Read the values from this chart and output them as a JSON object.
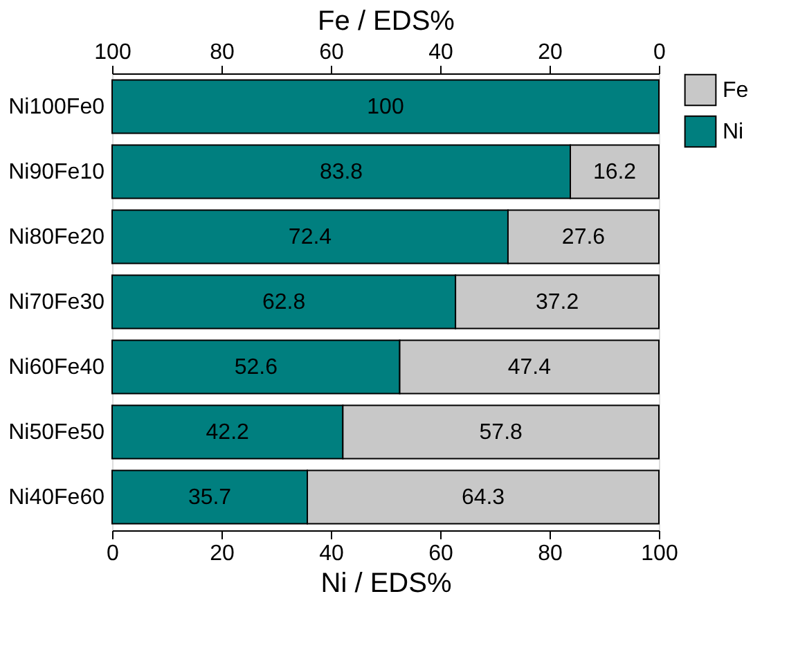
{
  "chart_data": {
    "type": "bar",
    "orientation": "horizontal",
    "stacked": true,
    "categories": [
      "Ni100Fe0",
      "Ni90Fe10",
      "Ni80Fe20",
      "Ni70Fe30",
      "Ni60Fe40",
      "Ni50Fe50",
      "Ni40Fe60"
    ],
    "series": [
      {
        "name": "Ni",
        "color": "#007f7f",
        "values": [
          100,
          83.8,
          72.4,
          62.8,
          52.6,
          42.2,
          35.7
        ],
        "value_labels": [
          "100",
          "83.8",
          "72.4",
          "62.8",
          "52.6",
          "42.2",
          "35.7"
        ]
      },
      {
        "name": "Fe",
        "color": "#c8c8c8",
        "values": [
          0,
          16.2,
          27.6,
          37.2,
          47.4,
          57.8,
          64.3
        ],
        "value_labels": [
          null,
          "16.2",
          "27.6",
          "37.2",
          "47.4",
          "57.8",
          "64.3"
        ]
      }
    ],
    "xlabel": "Ni / EDS%",
    "x2label": "Fe / EDS%",
    "xlim": [
      0,
      100
    ],
    "xticks": [
      0,
      20,
      40,
      60,
      80,
      100
    ],
    "x2lim": [
      100,
      0
    ],
    "x2ticks": [
      100,
      80,
      60,
      40,
      20,
      0
    ],
    "grid": false,
    "legend": "right"
  }
}
